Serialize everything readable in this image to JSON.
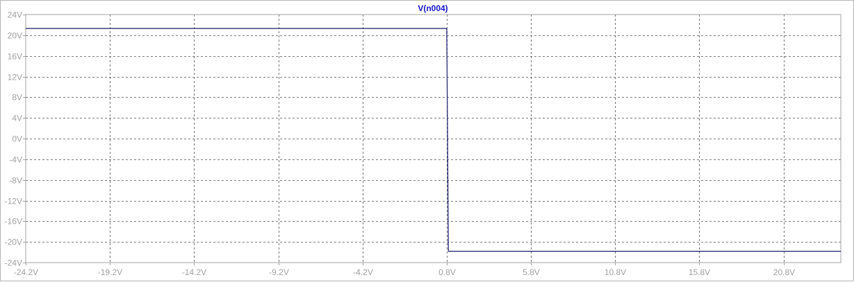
{
  "chart_data": {
    "type": "line",
    "title": "V(n004)",
    "xlabel": "",
    "ylabel": "",
    "xlim": [
      -24.2,
      24.2
    ],
    "ylim": [
      -24,
      24
    ],
    "x_ticks": [
      -24.2,
      -19.2,
      -14.2,
      -9.2,
      -4.2,
      0.8,
      5.8,
      10.8,
      15.8,
      20.8
    ],
    "x_tick_labels": [
      "-24.2V",
      "-19.2V",
      "-14.2V",
      "-9.2V",
      "-4.2V",
      "0.8V",
      "5.8V",
      "10.8V",
      "15.8V",
      "20.8V"
    ],
    "y_ticks": [
      24,
      20,
      16,
      12,
      8,
      4,
      0,
      -4,
      -8,
      -12,
      -16,
      -20,
      -24
    ],
    "y_tick_labels": [
      "24V",
      "20V",
      "16V",
      "12V",
      "8V",
      "4V",
      "0V",
      "-4V",
      "-8V",
      "-12V",
      "-16V",
      "-20V",
      "-24V"
    ],
    "grid": true,
    "series": [
      {
        "name": "V(n004)",
        "color": "#1a1a6e",
        "x": [
          -24.2,
          0.8,
          0.8,
          0.9,
          24.2
        ],
        "y": [
          21.3,
          21.3,
          21.3,
          -21.8,
          -21.8
        ]
      }
    ]
  },
  "colors": {
    "background": "#ffffff",
    "grid": "#4d4d4d",
    "axis": "#a0a0a0",
    "title": "#1515c8"
  }
}
